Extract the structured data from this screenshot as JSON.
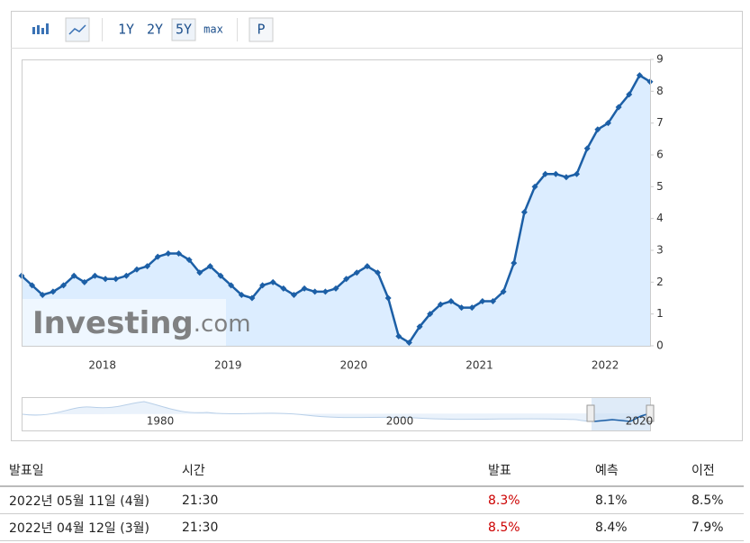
{
  "toolbar": {
    "buttons": [
      "1Y",
      "2Y",
      "5Y",
      "max"
    ],
    "extra": "P"
  },
  "chart_data": {
    "type": "line",
    "categories": [
      null,
      null,
      null,
      null,
      null,
      null,
      null,
      null,
      null,
      "2018",
      null,
      null,
      null,
      null,
      null,
      null,
      null,
      null,
      null,
      null,
      null,
      "2019",
      null,
      null,
      null,
      null,
      null,
      null,
      null,
      null,
      null,
      null,
      null,
      "2020",
      null,
      null,
      null,
      null,
      null,
      null,
      null,
      null,
      null,
      null,
      null,
      "2021",
      null,
      null,
      null,
      null,
      null,
      null,
      null,
      null,
      null,
      null,
      null,
      "2022",
      null,
      null,
      null
    ],
    "values": [
      2.2,
      1.9,
      1.6,
      1.7,
      1.9,
      2.2,
      2.0,
      2.2,
      2.1,
      2.1,
      2.2,
      2.4,
      2.5,
      2.8,
      2.9,
      2.9,
      2.7,
      2.3,
      2.5,
      2.2,
      1.9,
      1.6,
      1.5,
      1.9,
      2.0,
      1.8,
      1.6,
      1.8,
      1.7,
      1.7,
      1.8,
      2.1,
      2.3,
      2.5,
      2.3,
      1.5,
      0.3,
      0.1,
      0.6,
      1.0,
      1.3,
      1.4,
      1.2,
      1.2,
      1.4,
      1.4,
      1.7,
      2.6,
      4.2,
      5.0,
      5.4,
      5.4,
      5.3,
      5.4,
      6.2,
      6.8,
      7.0,
      7.5,
      7.9,
      8.5,
      8.3
    ],
    "color": "#1c5fa6",
    "area_color": "#d6eaff",
    "ylim": [
      0,
      9
    ],
    "yticks": [
      0,
      1,
      2,
      3,
      4,
      5,
      6,
      7,
      8,
      9
    ],
    "grid": false,
    "watermark": {
      "brand": "Investing",
      "suffix": ".com"
    }
  },
  "navigator": {
    "labels": [
      "1980",
      "2000",
      "2020"
    ]
  },
  "table": {
    "header": [
      "발표일",
      "시간",
      "발표",
      "예측",
      "이전"
    ],
    "rows": [
      [
        "2022년 05월 11일 (4월)",
        "21:30",
        "8.3%",
        "8.1%",
        "8.5%"
      ],
      [
        "2022년 04월 12일 (3월)",
        "21:30",
        "8.5%",
        "8.4%",
        "7.9%"
      ]
    ]
  }
}
